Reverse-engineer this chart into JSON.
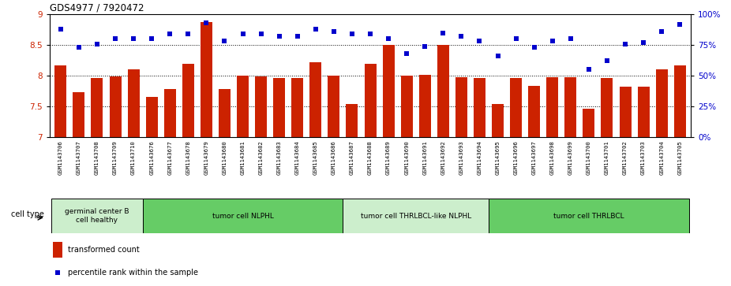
{
  "title": "GDS4977 / 7920472",
  "samples": [
    "GSM1143706",
    "GSM1143707",
    "GSM1143708",
    "GSM1143709",
    "GSM1143710",
    "GSM1143676",
    "GSM1143677",
    "GSM1143678",
    "GSM1143679",
    "GSM1143680",
    "GSM1143681",
    "GSM1143682",
    "GSM1143683",
    "GSM1143684",
    "GSM1143685",
    "GSM1143686",
    "GSM1143687",
    "GSM1143688",
    "GSM1143689",
    "GSM1143690",
    "GSM1143691",
    "GSM1143692",
    "GSM1143693",
    "GSM1143694",
    "GSM1143695",
    "GSM1143696",
    "GSM1143697",
    "GSM1143698",
    "GSM1143699",
    "GSM1143700",
    "GSM1143701",
    "GSM1143702",
    "GSM1143703",
    "GSM1143704",
    "GSM1143705"
  ],
  "bar_values": [
    8.17,
    7.73,
    7.97,
    7.99,
    8.1,
    7.66,
    7.79,
    8.19,
    8.88,
    7.79,
    8.0,
    7.99,
    7.96,
    7.97,
    8.22,
    8.0,
    7.54,
    8.19,
    8.5,
    8.0,
    8.02,
    8.5,
    7.98,
    7.96,
    7.54,
    7.97,
    7.83,
    7.98,
    7.98,
    7.47,
    7.96,
    7.82,
    7.82,
    8.1,
    8.17
  ],
  "dot_values": [
    88,
    73,
    76,
    80,
    80,
    80,
    84,
    84,
    93,
    78,
    84,
    84,
    82,
    82,
    88,
    86,
    84,
    84,
    80,
    68,
    74,
    85,
    82,
    78,
    66,
    80,
    73,
    78,
    80,
    55,
    62,
    76,
    77,
    86,
    92
  ],
  "bar_color": "#cc2200",
  "dot_color": "#0000cc",
  "ylim_left": [
    7.0,
    9.0
  ],
  "ylim_right": [
    0,
    100
  ],
  "yticks_left": [
    7.0,
    7.5,
    8.0,
    8.5,
    9.0
  ],
  "yticks_right": [
    0,
    25,
    50,
    75,
    100
  ],
  "ytick_labels_right": [
    "0%",
    "25%",
    "50%",
    "75%",
    "100%"
  ],
  "hgrid_lines": [
    7.5,
    8.0,
    8.5
  ],
  "cell_type_groups": [
    {
      "label": "germinal center B\ncell healthy",
      "start": 0,
      "end": 5,
      "color": "#cceecc"
    },
    {
      "label": "tumor cell NLPHL",
      "start": 5,
      "end": 16,
      "color": "#66cc66"
    },
    {
      "label": "tumor cell THRLBCL-like NLPHL",
      "start": 16,
      "end": 24,
      "color": "#cceecc"
    },
    {
      "label": "tumor cell THRLBCL",
      "start": 24,
      "end": 35,
      "color": "#66cc66"
    }
  ],
  "legend_bar_label": "transformed count",
  "legend_dot_label": "percentile rank within the sample",
  "cell_type_label": "cell type",
  "xtick_bg": "#dddddd",
  "fig_bg": "#ffffff"
}
